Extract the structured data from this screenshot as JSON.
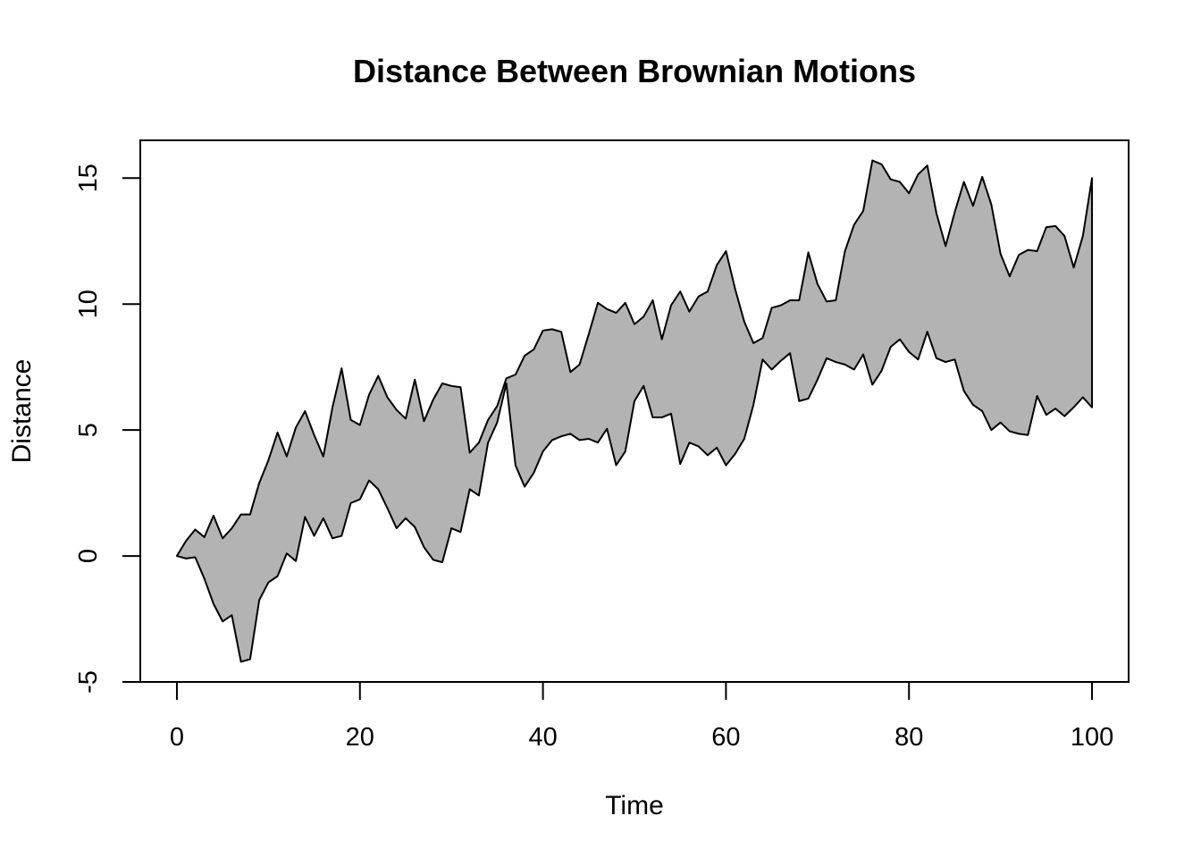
{
  "chart_data": {
    "type": "area",
    "title": "Distance Between Brownian Motions",
    "xlabel": "Time",
    "ylabel": "Distance",
    "xlim": [
      -4,
      104
    ],
    "ylim": [
      -5,
      16.5
    ],
    "x_ticks": [
      0,
      20,
      40,
      60,
      80,
      100
    ],
    "y_ticks": [
      -5,
      0,
      5,
      10,
      15
    ],
    "fill_color": "#b3b3b3",
    "line_color": "#000000",
    "grid": false,
    "legend": "none",
    "series": [
      {
        "values": [
          0,
          0.6,
          1.05,
          0.75,
          1.6,
          0.7,
          1.1,
          1.65,
          1.65,
          2.9,
          3.8,
          4.9,
          3.95,
          5.1,
          5.75,
          4.8,
          3.95,
          5.9,
          7.45,
          5.4,
          5.2,
          6.4,
          7.15,
          6.3,
          5.8,
          5.45,
          7.0,
          5.35,
          6.2,
          6.85,
          6.75,
          6.7,
          4.1,
          4.5,
          5.4,
          5.95,
          7.05,
          7.2,
          7.95,
          8.2,
          8.95,
          9.0,
          8.9,
          7.3,
          7.6,
          8.8,
          10.05,
          9.8,
          9.65,
          10.05,
          9.2,
          9.5,
          10.15,
          8.6,
          9.95,
          10.5,
          9.7,
          10.3,
          10.5,
          11.55,
          12.1,
          10.6,
          9.3,
          8.45,
          8.65,
          9.85,
          9.95,
          10.15,
          10.15,
          12.05,
          10.8,
          10.1,
          10.15,
          12.1,
          13.15,
          13.7,
          15.7,
          15.55,
          14.95,
          14.85,
          14.4,
          15.15,
          15.5,
          13.6,
          12.3,
          13.65,
          14.85,
          13.9,
          15.05,
          13.95,
          12.0,
          11.1,
          11.95,
          12.15,
          12.1,
          13.05,
          13.1,
          12.7,
          11.45,
          12.7,
          15.0
        ]
      },
      {
        "values": [
          0,
          -0.1,
          -0.05,
          -0.9,
          -1.9,
          -2.6,
          -2.35,
          -4.2,
          -4.1,
          -1.75,
          -1.05,
          -0.8,
          0.1,
          -0.2,
          1.55,
          0.8,
          1.5,
          0.7,
          0.8,
          2.1,
          2.25,
          3.0,
          2.65,
          1.9,
          1.1,
          1.5,
          1.15,
          0.35,
          -0.15,
          -0.25,
          1.1,
          0.95,
          2.65,
          2.4,
          4.5,
          5.3,
          6.85,
          3.6,
          2.75,
          3.3,
          4.15,
          4.6,
          4.75,
          4.85,
          4.6,
          4.65,
          4.5,
          5.05,
          3.6,
          4.15,
          6.15,
          6.75,
          5.5,
          5.5,
          5.65,
          3.65,
          4.5,
          4.35,
          4.0,
          4.3,
          3.6,
          4.05,
          4.65,
          6.0,
          7.8,
          7.4,
          7.75,
          8.05,
          6.15,
          6.25,
          7.0,
          7.85,
          7.7,
          7.6,
          7.4,
          8.0,
          6.8,
          7.35,
          8.3,
          8.6,
          8.1,
          7.8,
          8.9,
          7.85,
          7.7,
          7.8,
          6.55,
          6.0,
          5.75,
          5.0,
          5.3,
          4.95,
          4.85,
          4.8,
          6.35,
          5.6,
          5.85,
          5.55,
          5.9,
          6.3,
          5.9
        ]
      }
    ]
  }
}
